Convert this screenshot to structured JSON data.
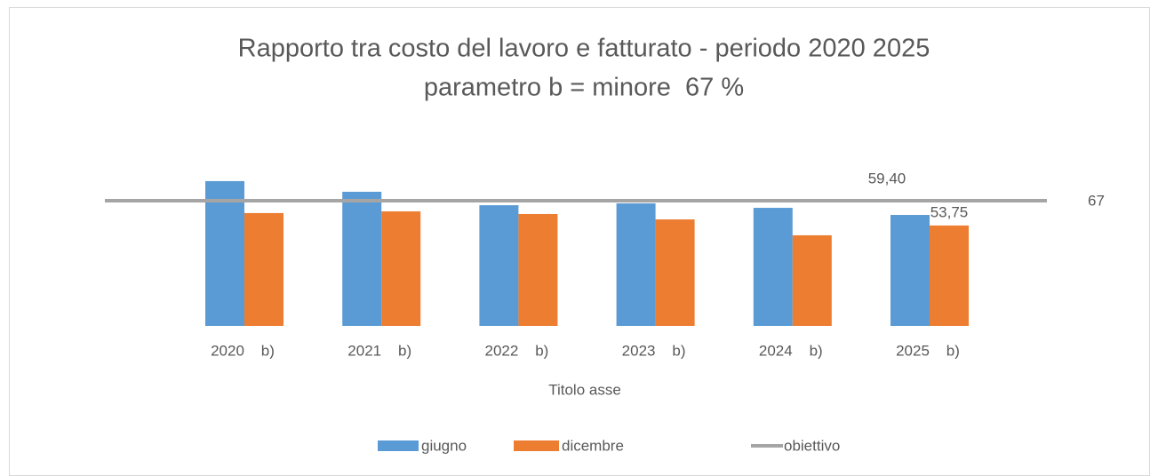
{
  "chart_data": {
    "type": "bar",
    "title": "Rapporto tra costo del lavoro e fatturato - periodo 2020 2025",
    "subtitle": "parametro b = minore  67 %",
    "x_label": "Titolo asse",
    "categories": [
      "2020    b)",
      "2021    b)",
      "2022    b)",
      "2023    b)",
      "2024    b)",
      "2025    b)"
    ],
    "series": [
      {
        "name": "giugno",
        "color": "#5b9bd5",
        "values": [
          77.5,
          71.8,
          64.6,
          65.6,
          63.2,
          59.4
        ],
        "value_labels": [
          null,
          null,
          null,
          null,
          null,
          "59,40"
        ]
      },
      {
        "name": "dicembre",
        "color": "#ed7d31",
        "values": [
          60.4,
          61.3,
          59.9,
          57.0,
          48.5,
          53.75
        ],
        "value_labels": [
          null,
          null,
          null,
          null,
          null,
          "53,75"
        ]
      },
      {
        "name": "obiettivo",
        "type": "line",
        "color": "#a5a5a5",
        "values": [
          67,
          67,
          67,
          67,
          67,
          67
        ]
      }
    ],
    "ylim": [
      0,
      90
    ],
    "legend": "bottom"
  }
}
